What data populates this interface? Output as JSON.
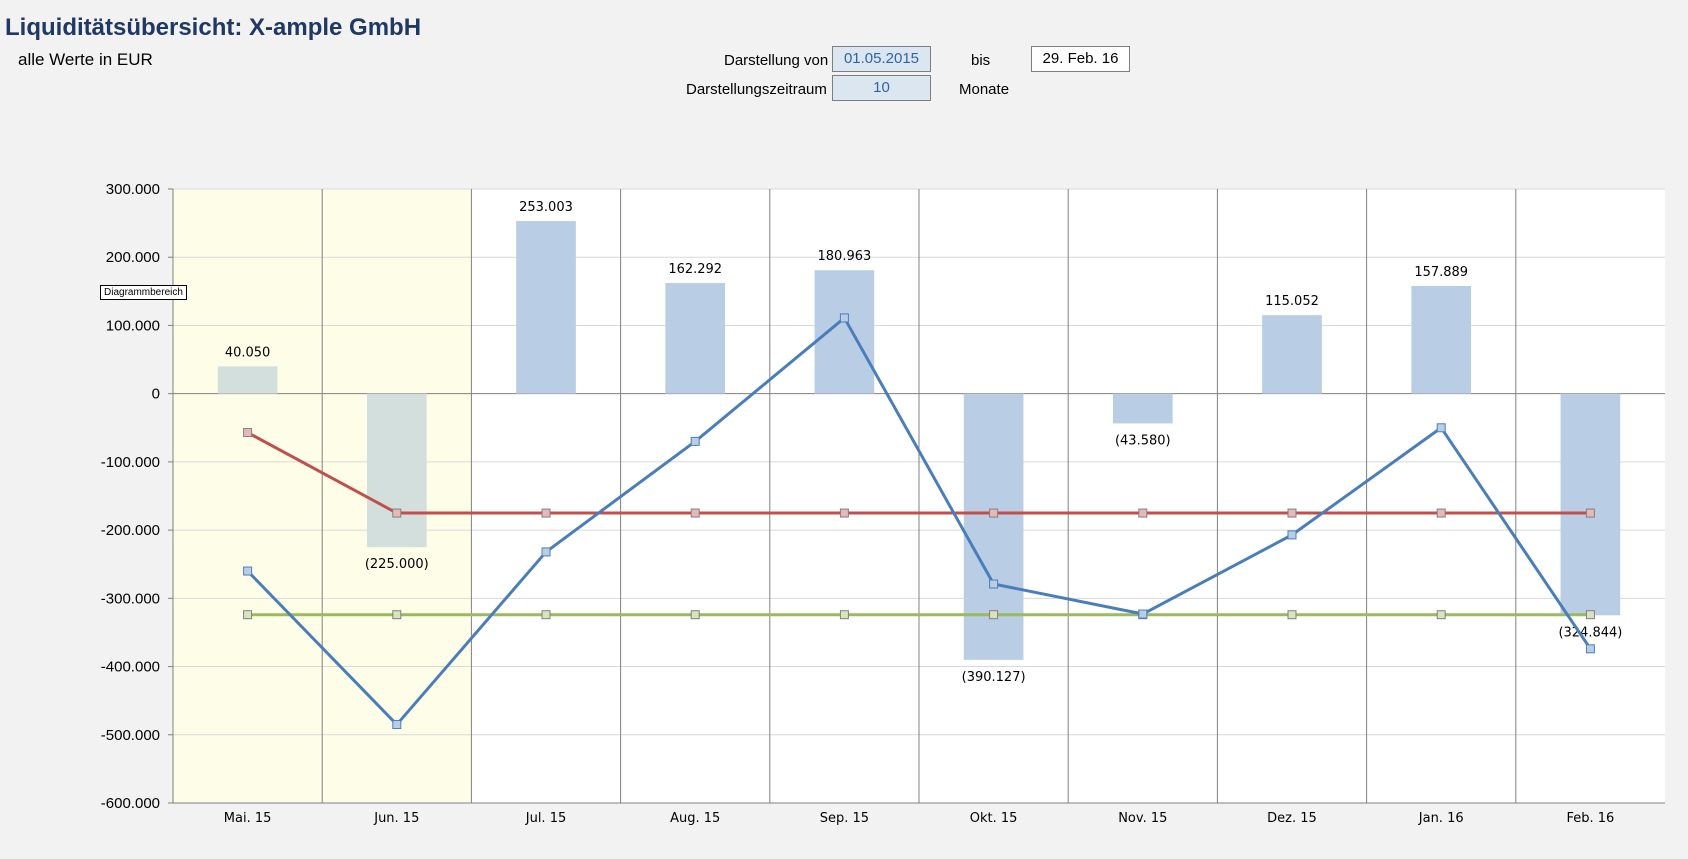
{
  "header": {
    "title": "Liquiditätsübersicht: X-ample GmbH",
    "subtitle": "alle Werte in EUR"
  },
  "controls": {
    "from_label": "Darstellung von",
    "from_value": "01.05.2015",
    "to_label": "bis",
    "to_value": "29. Feb. 16",
    "period_label": "Darstellungszeitraum",
    "period_value": "10",
    "period_unit": "Monate"
  },
  "tooltip": "Diagrammbereich",
  "colors": {
    "bar_past": "#d2dfdc",
    "bar_future": "#b9cde5",
    "past_shade": "#fefee8",
    "line_balance": "#4a7ebb",
    "line_red": "#c0504d",
    "line_green": "#9bbb59",
    "grid": "#d9d9d9",
    "divider": "#808080"
  },
  "chart_data": {
    "type": "bar",
    "categories": [
      "Mai. 15",
      "Jun. 15",
      "Jul. 15",
      "Aug. 15",
      "Sep. 15",
      "Okt. 15",
      "Nov. 15",
      "Dez. 15",
      "Jan. 16",
      "Feb. 16"
    ],
    "ylim": [
      -600000,
      300000
    ],
    "yticks": [
      300000,
      200000,
      100000,
      0,
      -100000,
      -200000,
      -300000,
      -400000,
      -500000,
      -600000
    ],
    "ytick_labels": [
      "300.000",
      "200.000",
      "100.000",
      "0",
      "-100.000",
      "-200.000",
      "-300.000",
      "-400.000",
      "-500.000",
      "-600.000"
    ],
    "past_categories": 2,
    "series": [
      {
        "type": "bar",
        "values": [
          40050,
          -225000,
          253003,
          162292,
          180963,
          -390127,
          -43580,
          115052,
          157889,
          -324844
        ],
        "labels": [
          "40.050",
          "(225.000)",
          "253.003",
          "162.292",
          "180.963",
          "(390.127)",
          "(43.580)",
          "115.052",
          "157.889",
          "(324.844)"
        ]
      },
      {
        "type": "line",
        "color_key": "line_balance",
        "values": [
          -260000,
          -485000,
          -232000,
          -70000,
          111000,
          -279000,
          -323000,
          -207000,
          -50000,
          -374000
        ]
      },
      {
        "type": "line",
        "color_key": "line_red",
        "values": [
          -57000,
          -175000,
          -175000,
          -175000,
          -175000,
          -175000,
          -175000,
          -175000,
          -175000,
          -175000
        ]
      },
      {
        "type": "line",
        "color_key": "line_green",
        "values": [
          -324000,
          -324000,
          -324000,
          -324000,
          -324000,
          -324000,
          -324000,
          -324000,
          -324000,
          -324000
        ]
      }
    ],
    "grid": true,
    "legend": "none"
  }
}
